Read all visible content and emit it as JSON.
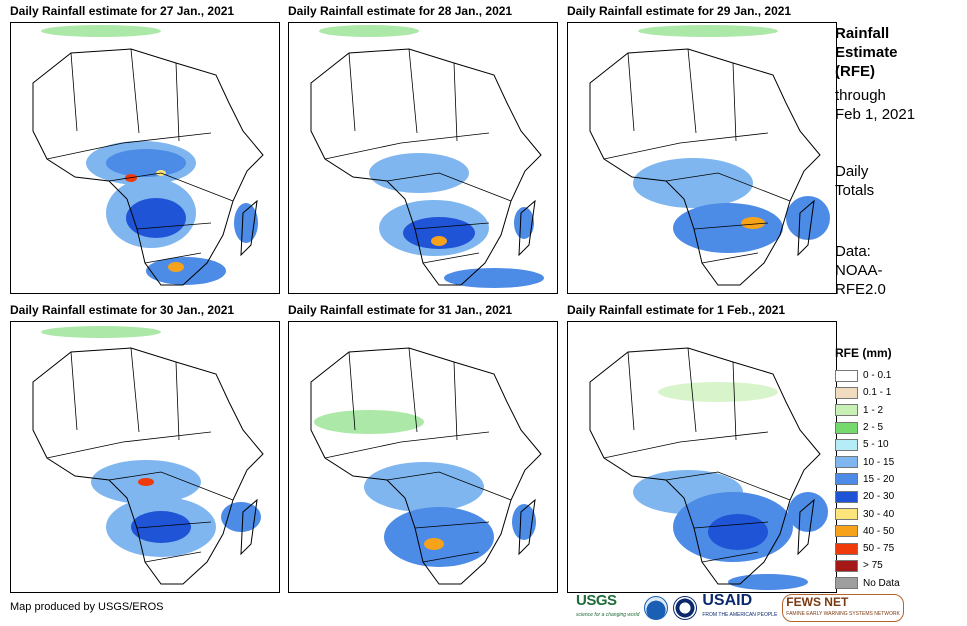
{
  "panels": [
    {
      "title": "Daily Rainfall estimate for 27 Jan., 2021"
    },
    {
      "title": "Daily Rainfall estimate for 28 Jan., 2021"
    },
    {
      "title": "Daily Rainfall estimate for 29 Jan., 2021"
    },
    {
      "title": "Daily Rainfall estimate for 30 Jan., 2021"
    },
    {
      "title": "Daily Rainfall estimate for 31 Jan., 2021"
    },
    {
      "title": "Daily Rainfall estimate for 1 Feb., 2021"
    }
  ],
  "sidebar": {
    "title_lines": [
      "Rainfall",
      "Estimate",
      "(RFE)"
    ],
    "through_lines": [
      "through",
      "Feb 1, 2021"
    ],
    "totals_lines": [
      "Daily",
      "Totals"
    ],
    "data_lines": [
      "Data:",
      "NOAA-",
      "RFE2.0"
    ]
  },
  "legend": {
    "title": "RFE (mm)",
    "items": [
      {
        "label": "0 - 0.1",
        "color": "#ffffff"
      },
      {
        "label": "0.1 - 1",
        "color": "#f1dcc0"
      },
      {
        "label": "1 - 2",
        "color": "#c8efb4"
      },
      {
        "label": "2 - 5",
        "color": "#75d96e"
      },
      {
        "label": "5 - 10",
        "color": "#b6ecf5"
      },
      {
        "label": "10 - 15",
        "color": "#7fb6ef"
      },
      {
        "label": "15 - 20",
        "color": "#4c8be6"
      },
      {
        "label": "20 - 30",
        "color": "#1f54d6"
      },
      {
        "label": "30 - 40",
        "color": "#fbe47a"
      },
      {
        "label": "40 - 50",
        "color": "#f6a21b"
      },
      {
        "label": "50 - 75",
        "color": "#ef3a0b"
      },
      {
        "label": "> 75",
        "color": "#a51818"
      },
      {
        "label": "No Data",
        "color": "#9e9e9e"
      }
    ]
  },
  "footer": {
    "credit": "Map produced by USGS/EROS",
    "logos": {
      "usgs": "USGS",
      "usgs_tagline": "science for a changing world",
      "usaid": "USAID",
      "usaid_tagline": "FROM THE AMERICAN PEOPLE",
      "fews": "FEWS NET",
      "fews_tagline": "FAMINE EARLY WARNING SYSTEMS NETWORK"
    }
  }
}
